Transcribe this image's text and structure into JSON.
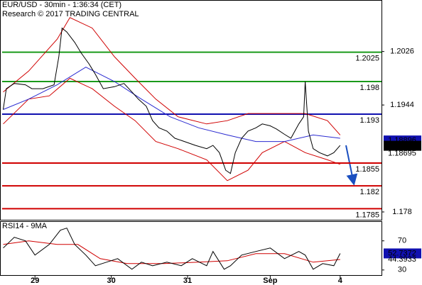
{
  "chart_data": [
    {
      "type": "line",
      "title": "EUR/USD - 30min - 1:36:34 (CET)",
      "subtitle": "Research © 2017 TRADING CENTRAL",
      "xlim": [
        0,
        120
      ],
      "ylim": [
        1.1768,
        1.2105
      ],
      "yticks": [
        1.178,
        1.1944,
        1.2026
      ],
      "levels": {
        "values": [
          1.2025,
          1.198,
          1.193,
          1.1855,
          1.182,
          1.1785
        ],
        "colors": [
          "#1a9a1a",
          "#1a9a1a",
          "#1010b0",
          "#d00000",
          "#d00000",
          "#d00000"
        ]
      },
      "series": [
        {
          "color": "#d00000",
          "x": [
            1,
            9,
            18,
            22,
            29,
            36,
            42.5,
            49,
            56,
            65,
            71.5,
            78,
            87,
            96,
            103,
            107
          ],
          "values": [
            1.1964,
            1.1996,
            1.2045,
            1.2078,
            1.2062,
            1.2018,
            1.1985,
            1.1953,
            1.1926,
            1.1915,
            1.192,
            1.1931,
            1.1931,
            1.1931,
            1.192,
            1.1898
          ]
        },
        {
          "color": "#d00000",
          "x": [
            1,
            9,
            15.5,
            22,
            29,
            36,
            42.5,
            49,
            56,
            65,
            71.5,
            78,
            82.5,
            89.5,
            96,
            103,
            107
          ],
          "values": [
            1.1915,
            1.1953,
            1.1958,
            1.1985,
            1.1969,
            1.1942,
            1.192,
            1.1888,
            1.1877,
            1.186,
            1.1828,
            1.1844,
            1.1871,
            1.1888,
            1.1871,
            1.186,
            1.1853
          ]
        },
        {
          "color": "#2a2ad0",
          "x": [
            1,
            9,
            18,
            27,
            36,
            44.5,
            53.5,
            62.5,
            71.5,
            80.5,
            89.5,
            98.5,
            107
          ],
          "values": [
            1.1937,
            1.1953,
            1.1975,
            1.2002,
            1.198,
            1.1953,
            1.1926,
            1.1909,
            1.1898,
            1.1888,
            1.1888,
            1.1898,
            1.1893
          ]
        },
        {
          "color": "#000000",
          "x": [
            1,
            2,
            4.5,
            8,
            10,
            13.5,
            17,
            18.5,
            19.5,
            21,
            23.5,
            25.5,
            28,
            30,
            32.5,
            36,
            39,
            41.5,
            43.5,
            46,
            48,
            50,
            52.5,
            55,
            58,
            61.5,
            65,
            67,
            69,
            71,
            72.5,
            74,
            76,
            78,
            80.5,
            82.5,
            85,
            87,
            89.5,
            91.5,
            94,
            95.5,
            96,
            97,
            98.5,
            100.5,
            103,
            105,
            107
          ],
          "values": [
            1.1937,
            1.1969,
            1.1977,
            1.1975,
            1.1969,
            1.1969,
            1.1975,
            1.2018,
            1.2062,
            1.2056,
            1.204,
            1.2024,
            1.2007,
            1.1991,
            1.1969,
            1.1972,
            1.1977,
            1.1964,
            1.1953,
            1.1942,
            1.192,
            1.1909,
            1.1904,
            1.1893,
            1.1888,
            1.1882,
            1.1877,
            1.1882,
            1.1871,
            1.1844,
            1.1839,
            1.1871,
            1.1893,
            1.1904,
            1.1909,
            1.1915,
            1.1912,
            1.1907,
            1.1899,
            1.1893,
            1.1915,
            1.1926,
            1.198,
            1.1904,
            1.1877,
            1.1871,
            1.1866,
            1.1871,
            1.1882
          ]
        }
      ],
      "price_tags": {
        "values": [
          1.18896,
          1.18815,
          1.18695
        ],
        "colors": [
          "#1010b0",
          "#000000",
          "#d00000"
        ],
        "boxed": [
          true,
          true,
          false
        ]
      }
    },
    {
      "type": "line",
      "title": "RSI14 - 9MA",
      "xlim": [
        0,
        120
      ],
      "ylim": [
        23,
        97
      ],
      "yticks": [
        30,
        70
      ],
      "xticks": [
        {
          "value": 11,
          "label": "29"
        },
        {
          "value": 35,
          "label": "30"
        },
        {
          "value": 59,
          "label": "31"
        },
        {
          "value": 85,
          "label": "Sep"
        },
        {
          "value": 107,
          "label": "4"
        }
      ],
      "series": [
        {
          "color": "#d00000",
          "x": [
            1,
            9,
            18,
            24.5,
            31.5,
            40,
            51.5,
            62.5,
            71.5,
            80.5,
            89.5,
            98.5,
            107
          ],
          "values": [
            65.1,
            70,
            65.1,
            65.1,
            45.6,
            38.8,
            38.8,
            40.7,
            42.7,
            52.4,
            52.4,
            40.7,
            44.4
          ]
        },
        {
          "color": "#000000",
          "x": [
            1,
            4.5,
            8,
            11,
            15.5,
            19,
            21,
            23.5,
            27,
            30,
            33.5,
            37,
            41.5,
            44.5,
            48,
            52.5,
            57,
            60.5,
            65,
            67,
            70.5,
            72.5,
            76,
            80.5,
            85,
            89.5,
            94,
            96,
            98.5,
            101.5,
            105,
            107
          ],
          "values": [
            60.2,
            74.9,
            70,
            50.5,
            65.1,
            84.6,
            87.6,
            65.1,
            50.5,
            35.9,
            40.7,
            45.6,
            31,
            40.7,
            35.9,
            40.7,
            35.9,
            45.6,
            35.9,
            55.4,
            31,
            35.9,
            50.5,
            55.4,
            60.2,
            45.6,
            55.4,
            50.5,
            31,
            38.8,
            35.9,
            52.7
          ]
        }
      ],
      "price_tags": {
        "values": [
          52.7372,
          44.3933
        ],
        "colors": [
          "#1010b0",
          "#d00000"
        ],
        "boxed": [
          true,
          false
        ]
      }
    }
  ]
}
